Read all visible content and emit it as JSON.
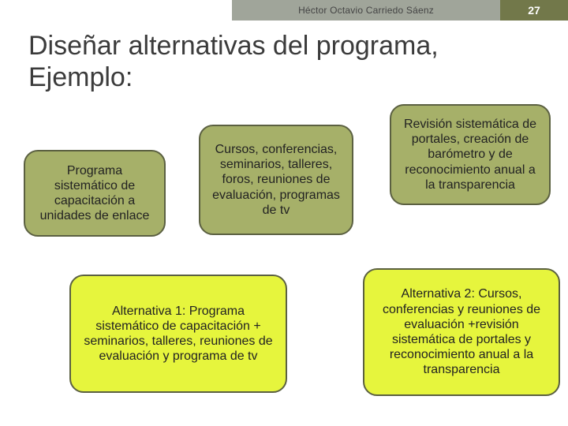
{
  "header": {
    "author": "Héctor Octavio Carriedo Sáenz",
    "page_number": "27"
  },
  "title": "Diseñar alternativas del programa, Ejemplo:",
  "boxes": {
    "b1": "Programa sistemático de capacitación a unidades de enlace",
    "b2": "Cursos, conferencias, seminarios, talleres, foros, reuniones de evaluación, programas de tv",
    "b3": "Revisión sistemática de portales, creación de barómetro y de reconocimiento anual a la transparencia",
    "b4": "Alternativa 1:\nPrograma sistemático de capacitación + seminarios, talleres, reuniones de evaluación y programa de tv",
    "b5": "Alternativa 2:\nCursos, conferencias y reuniones de evaluación +revisión sistemática de portales y reconocimiento anual a la  transparencia"
  },
  "colors": {
    "topbar_gray": "#a0a59a",
    "topbar_olive": "#72784a",
    "olive_fill": "#a6b069",
    "yellow_fill": "#e6f53d",
    "box_border": "#5b6041",
    "title_color": "#3b3b3b"
  }
}
